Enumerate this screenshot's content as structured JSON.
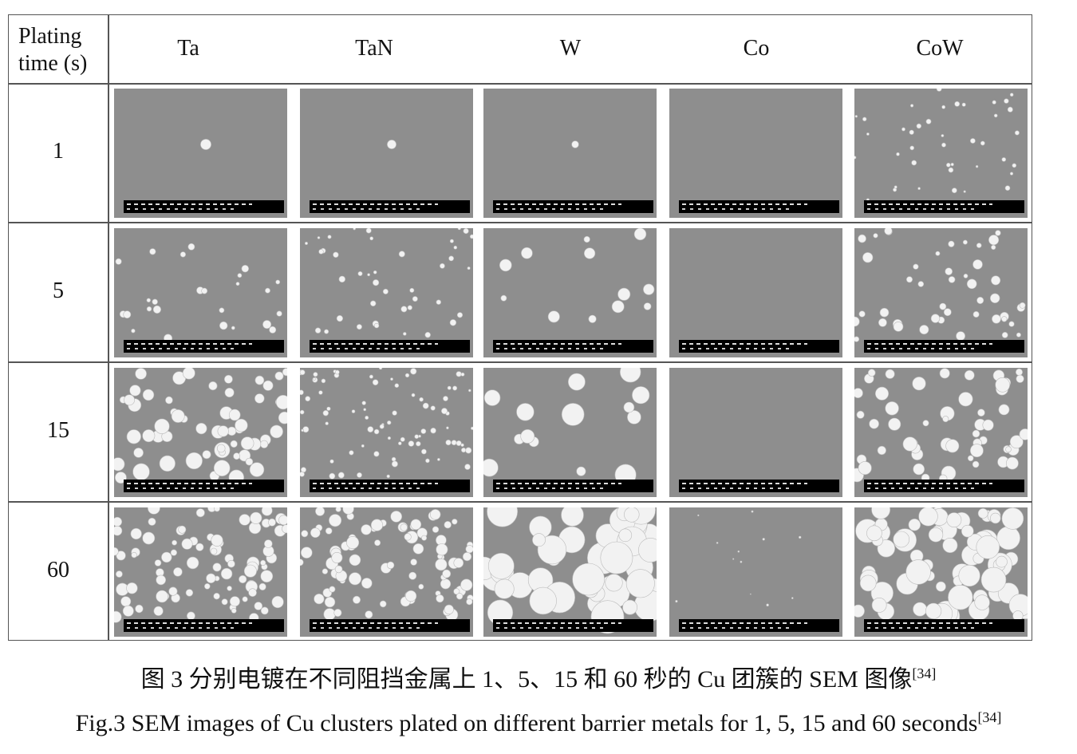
{
  "table": {
    "corner_header": [
      "Plating",
      "time (s)"
    ],
    "columns": [
      "Ta",
      "TaN",
      "W",
      "Co",
      "CoW"
    ],
    "rows": [
      "1",
      "5",
      "15",
      "60"
    ]
  },
  "caption": {
    "zh": "图 3 分别电镀在不同阻挡金属上 1、5、15 和 60 秒的 Cu 团簇的 SEM 图像",
    "zh_ref": "[34]",
    "en": "Fig.3 SEM images of Cu clusters plated on different barrier metals for 1, 5, 15 and 60 seconds",
    "en_ref": "[34]"
  }
}
